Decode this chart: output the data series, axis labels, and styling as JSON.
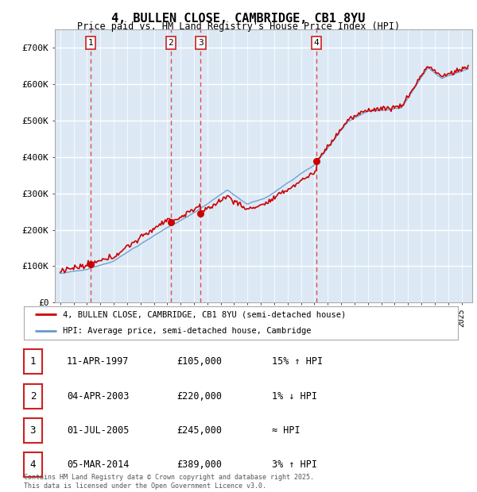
{
  "title": "4, BULLEN CLOSE, CAMBRIDGE, CB1 8YU",
  "subtitle": "Price paid vs. HM Land Registry's House Price Index (HPI)",
  "fig_bg_color": "#ffffff",
  "plot_bg_color": "#dce9f5",
  "ylim": [
    0,
    750000
  ],
  "yticks": [
    0,
    100000,
    200000,
    300000,
    400000,
    500000,
    600000,
    700000
  ],
  "ytick_labels": [
    "£0",
    "£100K",
    "£200K",
    "£300K",
    "£400K",
    "£500K",
    "£600K",
    "£700K"
  ],
  "sale_dates": [
    1997.28,
    2003.26,
    2005.5,
    2014.17
  ],
  "sale_prices": [
    105000,
    220000,
    245000,
    389000
  ],
  "sale_labels": [
    "1",
    "2",
    "3",
    "4"
  ],
  "legend_line1": "4, BULLEN CLOSE, CAMBRIDGE, CB1 8YU (semi-detached house)",
  "legend_line2": "HPI: Average price, semi-detached house, Cambridge",
  "table_rows": [
    [
      "1",
      "11-APR-1997",
      "£105,000",
      "15% ↑ HPI"
    ],
    [
      "2",
      "04-APR-2003",
      "£220,000",
      "1% ↓ HPI"
    ],
    [
      "3",
      "01-JUL-2005",
      "£245,000",
      "≈ HPI"
    ],
    [
      "4",
      "05-MAR-2014",
      "£389,000",
      "3% ↑ HPI"
    ]
  ],
  "footnote": "Contains HM Land Registry data © Crown copyright and database right 2025.\nThis data is licensed under the Open Government Licence v3.0.",
  "red_line_color": "#cc0000",
  "blue_line_color": "#6699cc",
  "dashed_line_color": "#dd3333",
  "grid_color": "#ffffff",
  "box_edge_color": "#cc2222",
  "spine_color": "#aaaaaa"
}
